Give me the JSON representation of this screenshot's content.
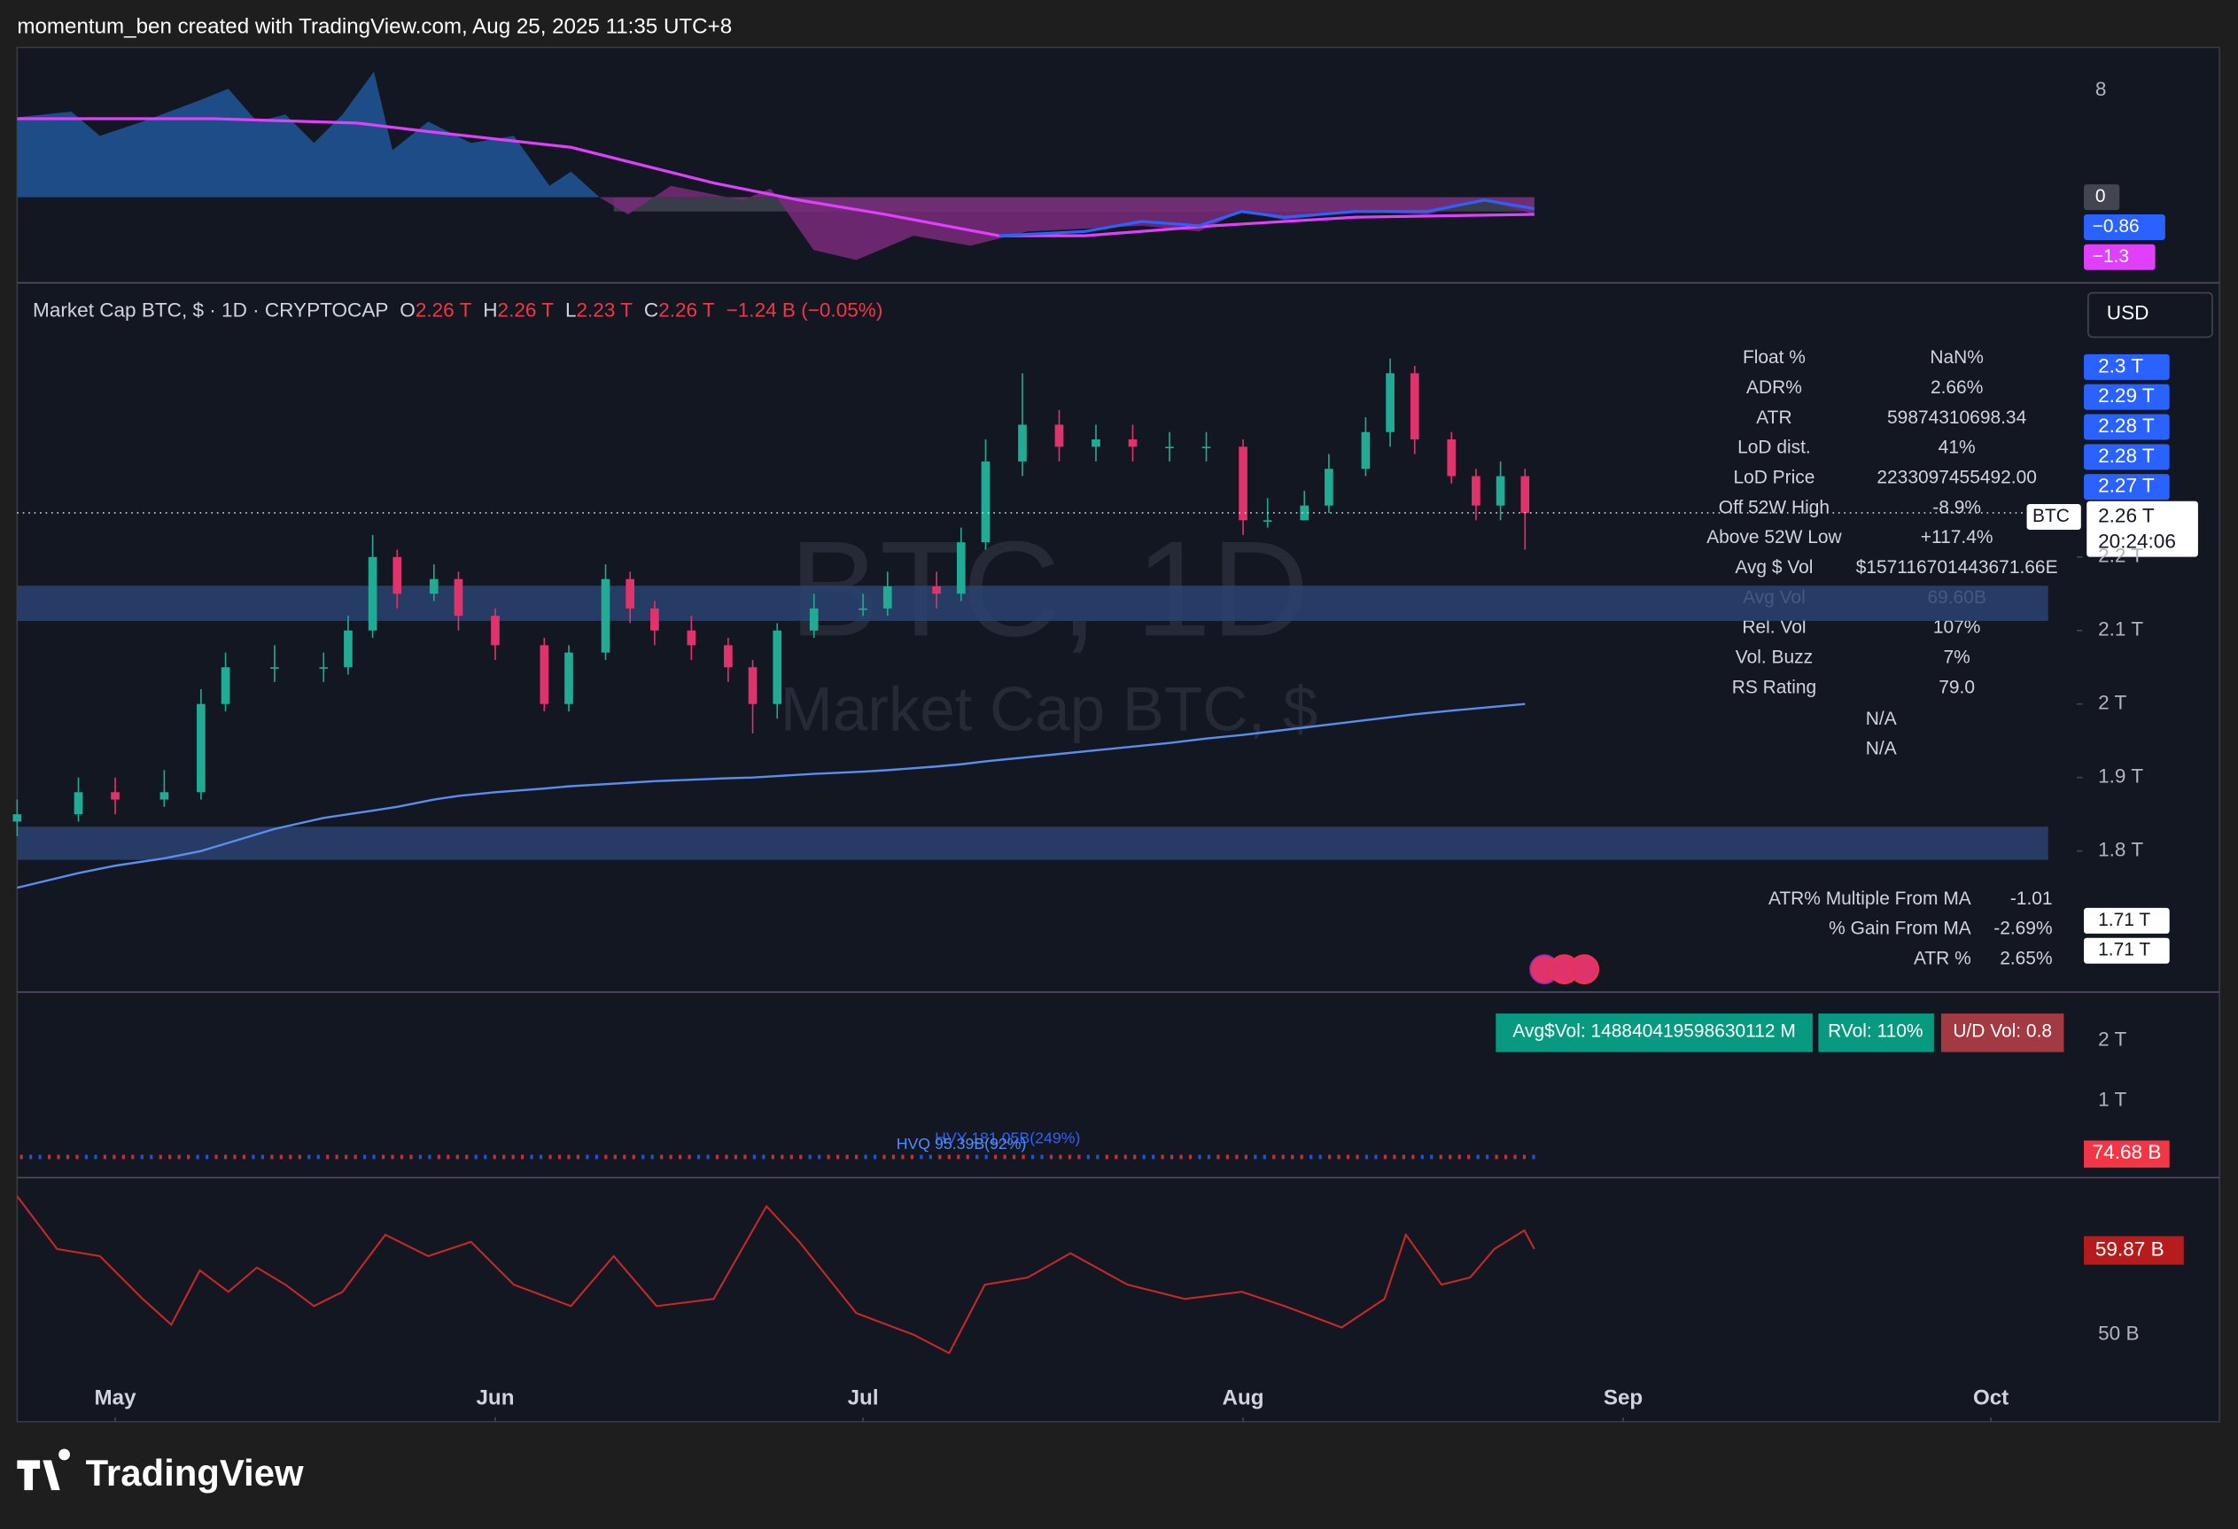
{
  "header": {
    "credit": "momentum_ben created with TradingView.com, Aug 25, 2025 11:35 UTC+8"
  },
  "footer": {
    "brand": "TradingView"
  },
  "indicator_panel": {
    "tick": "8",
    "labels": [
      "0",
      "−0.86",
      "−1.3"
    ]
  },
  "legend": {
    "symbol": "Market Cap BTC, $ · 1D · CRYPTOCAP",
    "o_key": "O",
    "o": "2.26 T",
    "h_key": "H",
    "h": "2.26 T",
    "l_key": "L",
    "l": "2.23 T",
    "c_key": "C",
    "c": "2.26 T",
    "change": "−1.24 B (−0.05%)"
  },
  "watermark": {
    "line1": "BTC, 1D",
    "line2": "Market Cap BTC, $"
  },
  "currency": "USD",
  "price_labels": {
    "stack": [
      "2.3 T",
      "2.29 T",
      "2.28 T",
      "2.28 T",
      "2.27 T"
    ],
    "last": "2.26 T",
    "countdown": "20:24:06",
    "symbol": "BTC",
    "low": [
      "1.71 T",
      "1.71 T"
    ]
  },
  "stats_table": [
    [
      "Float %",
      "NaN%"
    ],
    [
      "ADR%",
      "2.66%"
    ],
    [
      "ATR",
      "59874310698.34"
    ],
    [
      "LoD dist.",
      "41%"
    ],
    [
      "LoD Price",
      "2233097455492.00"
    ],
    [
      "Off 52W High",
      "-8.9%"
    ],
    [
      "Above 52W Low",
      "+117.4%"
    ],
    [
      "Avg $ Vol",
      "$157116701443671.66E"
    ],
    [
      "Avg Vol",
      "69.60B"
    ],
    [
      "Rel. Vol",
      "107%"
    ],
    [
      "Vol. Buzz",
      "7%"
    ],
    [
      "RS Rating",
      "79.0"
    ]
  ],
  "na_rows": [
    "N/A",
    "N/A"
  ],
  "ma_table": [
    [
      "ATR% Multiple From MA",
      "-1.01"
    ],
    [
      "% Gain From MA",
      "-2.69%"
    ],
    [
      "ATR %",
      "2.65%"
    ]
  ],
  "volume_panel": {
    "ticks": [
      "2 T",
      "1 T"
    ],
    "last": "74.68 B",
    "badges": [
      "Avg$Vol: 148840419598630112 M",
      "RVol: 110%",
      "U/D Vol: 0.8"
    ],
    "hvy": "HVY 181.05B(249%)",
    "hvq": "HVQ 95.39B(92%)"
  },
  "lower_panel": {
    "last": "59.87 B",
    "tick": "50 B"
  },
  "chart_data": {
    "type": "candlestick",
    "x": [
      0,
      5,
      8,
      12,
      15,
      17,
      21,
      25,
      27,
      29,
      31,
      34,
      36,
      39,
      43,
      45,
      48,
      50,
      52,
      55,
      58,
      60,
      62,
      65,
      69,
      71,
      75,
      77,
      79,
      82,
      85,
      88,
      91,
      94,
      97,
      100,
      102,
      105,
      107,
      110,
      112,
      114,
      117,
      119,
      121,
      123
    ],
    "open": [
      1.84,
      1.85,
      1.88,
      1.87,
      1.88,
      2.0,
      2.05,
      2.05,
      2.05,
      2.1,
      2.2,
      2.15,
      2.17,
      2.12,
      2.08,
      2.0,
      2.07,
      2.17,
      2.13,
      2.1,
      2.08,
      2.05,
      2.0,
      2.1,
      2.13,
      2.13,
      2.16,
      2.15,
      2.22,
      2.33,
      2.38,
      2.35,
      2.36,
      2.35,
      2.35,
      2.35,
      2.25,
      2.25,
      2.27,
      2.32,
      2.37,
      2.45,
      2.36,
      2.31,
      2.27,
      2.31
    ],
    "high": [
      1.87,
      1.9,
      1.9,
      1.91,
      2.02,
      2.07,
      2.08,
      2.07,
      2.12,
      2.23,
      2.21,
      2.19,
      2.18,
      2.13,
      2.09,
      2.08,
      2.19,
      2.18,
      2.14,
      2.12,
      2.09,
      2.06,
      2.11,
      2.15,
      2.15,
      2.18,
      2.18,
      2.24,
      2.36,
      2.45,
      2.4,
      2.38,
      2.38,
      2.37,
      2.37,
      2.36,
      2.28,
      2.29,
      2.34,
      2.39,
      2.47,
      2.46,
      2.37,
      2.32,
      2.33,
      2.32
    ],
    "low": [
      1.82,
      1.84,
      1.85,
      1.86,
      1.87,
      1.99,
      2.03,
      2.03,
      2.04,
      2.09,
      2.13,
      2.14,
      2.1,
      2.06,
      1.99,
      1.99,
      2.06,
      2.11,
      2.08,
      2.06,
      2.03,
      1.96,
      1.98,
      2.09,
      2.12,
      2.12,
      2.13,
      2.14,
      2.21,
      2.31,
      2.33,
      2.33,
      2.33,
      2.33,
      2.33,
      2.23,
      2.24,
      2.25,
      2.26,
      2.31,
      2.35,
      2.34,
      2.3,
      2.25,
      2.25,
      2.21
    ],
    "close": [
      1.85,
      1.88,
      1.87,
      1.88,
      2.0,
      2.05,
      2.05,
      2.05,
      2.1,
      2.2,
      2.15,
      2.17,
      2.12,
      2.08,
      2.0,
      2.07,
      2.17,
      2.13,
      2.1,
      2.08,
      2.05,
      2.0,
      2.1,
      2.13,
      2.13,
      2.16,
      2.15,
      2.22,
      2.33,
      2.38,
      2.35,
      2.36,
      2.35,
      2.35,
      2.35,
      2.25,
      2.25,
      2.27,
      2.32,
      2.37,
      2.45,
      2.36,
      2.31,
      2.27,
      2.31,
      2.26
    ],
    "up_color": "#22ab94",
    "down_color": "#e0336b",
    "overlays": [
      {
        "color": "#5b8def",
        "values": [
          1.75,
          1.77,
          1.78,
          1.79,
          1.8,
          1.81,
          1.83,
          1.845,
          1.85,
          1.855,
          1.86,
          1.87,
          1.875,
          1.88,
          1.885,
          1.888,
          1.891,
          1.893,
          1.895,
          1.897,
          1.899,
          1.9,
          1.902,
          1.905,
          1.908,
          1.91,
          1.915,
          1.918,
          1.922,
          1.927,
          1.932,
          1.937,
          1.942,
          1.947,
          1.953,
          1.958,
          1.962,
          1.968,
          1.972,
          1.978,
          1.982,
          1.986,
          1.991,
          1.994,
          1.997,
          2.0
        ]
      }
    ],
    "zones": [
      [
        2.113,
        2.161
      ],
      [
        1.788,
        1.833
      ]
    ],
    "zone_color": "#2b4370",
    "xlim": [
      0,
      168
    ],
    "xticks": [
      {
        "value": 8,
        "label": "May"
      },
      {
        "value": 39,
        "label": "Jun"
      },
      {
        "value": 69,
        "label": "Jul"
      },
      {
        "value": 100,
        "label": "Aug"
      },
      {
        "value": 131,
        "label": "Sep"
      },
      {
        "value": 161,
        "label": "Oct"
      }
    ],
    "ylim": [
      1.608,
      2.573
    ],
    "yticks": [
      {
        "value": 2.2,
        "label": "2.2 T"
      },
      {
        "value": 2.1,
        "label": "2.1 T"
      },
      {
        "value": 2.0,
        "label": "2 T"
      },
      {
        "value": 1.9,
        "label": "1.9 T"
      },
      {
        "value": 1.8,
        "label": "1.8 T"
      }
    ],
    "grid": false
  }
}
